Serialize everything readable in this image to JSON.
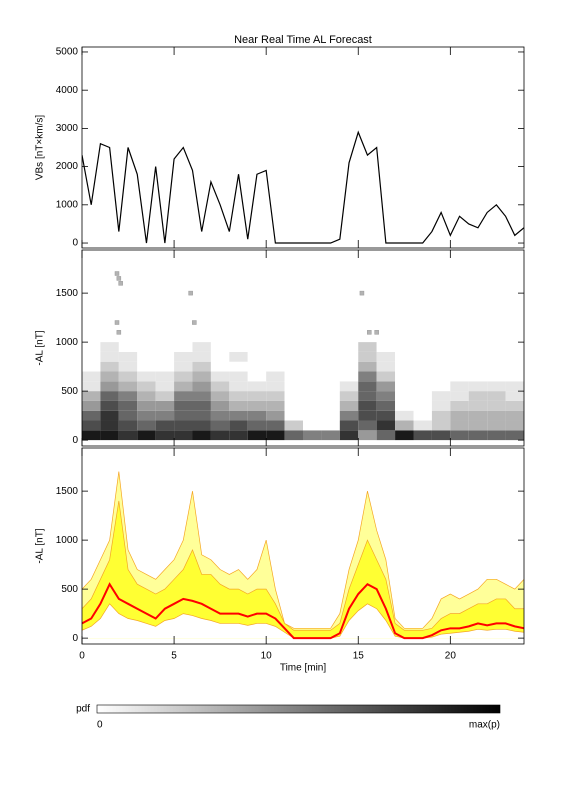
{
  "chart_data": [
    {
      "type": "line",
      "title": "Near Real Time AL Forecast",
      "ylabel": "VBs [nT×km/s]",
      "color": "#000000",
      "xlim": [
        0,
        24
      ],
      "xticks": [
        0,
        5,
        10,
        15,
        20
      ],
      "ylim": [
        -130,
        5130
      ],
      "yticks": [
        0,
        1000,
        2000,
        3000,
        4000,
        5000
      ],
      "x": [
        0,
        0.5,
        1,
        1.5,
        2,
        2.5,
        3,
        3.5,
        4,
        4.5,
        5,
        5.5,
        6,
        6.5,
        7,
        7.5,
        8,
        8.5,
        9,
        9.5,
        10,
        10.5,
        11,
        11.5,
        12,
        12.5,
        13,
        13.5,
        14,
        14.5,
        15,
        15.5,
        16,
        16.5,
        17,
        17.5,
        18,
        18.5,
        19,
        19.5,
        20,
        20.5,
        21,
        21.5,
        22,
        22.5,
        23,
        23.5,
        24
      ],
      "values": [
        2300,
        1000,
        2600,
        2500,
        300,
        2500,
        1800,
        0,
        2000,
        0,
        2200,
        2500,
        1900,
        300,
        1600,
        1000,
        300,
        1800,
        100,
        1800,
        1900,
        0,
        0,
        0,
        0,
        0,
        0,
        0,
        100,
        2100,
        2900,
        2300,
        2500,
        0,
        0,
        0,
        0,
        0,
        300,
        800,
        200,
        700,
        500,
        400,
        800,
        1000,
        700,
        200,
        400
      ]
    },
    {
      "type": "heatmap",
      "ylabel": "-AL [nT]",
      "xlim": [
        0,
        24
      ],
      "xticks": [
        0,
        5,
        10,
        15,
        20
      ],
      "ylim": [
        -60,
        1940
      ],
      "yticks": [
        0,
        500,
        1000,
        1500
      ],
      "xbins": [
        0,
        1,
        2,
        3,
        4,
        5,
        6,
        7,
        8,
        9,
        10,
        11,
        12,
        13,
        14,
        15,
        16,
        17,
        18,
        19,
        20,
        21,
        22,
        23,
        24
      ],
      "ybins": [
        0,
        100,
        200,
        300,
        400,
        500,
        600,
        700,
        800,
        900,
        1000
      ],
      "z": [
        [
          0.9,
          0.9,
          0.8,
          0.9,
          0.8,
          0.8,
          0.9,
          0.8,
          0.8,
          0.9,
          0.9,
          0.6,
          0.5,
          0.5,
          0.8,
          0.4,
          0.6,
          0.9,
          0.7,
          0.7,
          0.6,
          0.6,
          0.6,
          0.6
        ],
        [
          0.7,
          0.8,
          0.7,
          0.6,
          0.7,
          0.7,
          0.7,
          0.6,
          0.7,
          0.6,
          0.6,
          0.2,
          0,
          0,
          0.7,
          0.6,
          0.8,
          0.3,
          0.1,
          0.2,
          0.3,
          0.3,
          0.3,
          0.3
        ],
        [
          0.6,
          0.8,
          0.6,
          0.5,
          0.5,
          0.6,
          0.6,
          0.5,
          0.5,
          0.5,
          0.4,
          0,
          0,
          0,
          0.5,
          0.7,
          0.7,
          0.1,
          0,
          0.2,
          0.3,
          0.3,
          0.3,
          0.3
        ],
        [
          0.4,
          0.7,
          0.6,
          0.4,
          0.4,
          0.6,
          0.6,
          0.4,
          0.3,
          0.3,
          0.3,
          0,
          0,
          0,
          0.3,
          0.7,
          0.6,
          0,
          0,
          0.1,
          0.2,
          0.2,
          0.2,
          0.2
        ],
        [
          0.3,
          0.6,
          0.5,
          0.3,
          0.2,
          0.5,
          0.5,
          0.3,
          0.2,
          0.2,
          0.2,
          0,
          0,
          0,
          0.2,
          0.6,
          0.5,
          0,
          0,
          0.1,
          0.1,
          0.2,
          0.2,
          0.1
        ],
        [
          0.1,
          0.4,
          0.3,
          0.2,
          0.1,
          0.3,
          0.4,
          0.2,
          0.1,
          0.1,
          0.1,
          0,
          0,
          0,
          0.1,
          0.6,
          0.4,
          0,
          0,
          0,
          0.1,
          0.1,
          0.1,
          0.1
        ],
        [
          0.1,
          0.3,
          0.2,
          0.1,
          0.1,
          0.2,
          0.3,
          0.1,
          0.1,
          0,
          0.1,
          0,
          0,
          0,
          0,
          0.5,
          0.2,
          0,
          0,
          0,
          0,
          0,
          0,
          0
        ],
        [
          0,
          0.2,
          0.1,
          0,
          0,
          0.1,
          0.2,
          0,
          0,
          0,
          0,
          0,
          0,
          0,
          0,
          0.3,
          0.1,
          0,
          0,
          0,
          0,
          0,
          0,
          0
        ],
        [
          0,
          0.1,
          0.1,
          0,
          0,
          0.1,
          0.1,
          0,
          0.1,
          0,
          0,
          0,
          0,
          0,
          0,
          0.2,
          0.1,
          0,
          0,
          0,
          0,
          0,
          0,
          0
        ],
        [
          0,
          0.1,
          0,
          0,
          0,
          0,
          0.1,
          0,
          0,
          0,
          0,
          0,
          0,
          0,
          0,
          0.2,
          0,
          0,
          0,
          0,
          0,
          0,
          0,
          0
        ]
      ],
      "outliers": {
        "x": [
          1.9,
          2,
          2.1,
          1.9,
          5.9,
          6.1,
          15.2,
          15.6,
          16,
          2
        ],
        "y": [
          1700,
          1650,
          1600,
          1200,
          1500,
          1200,
          1500,
          1100,
          1100,
          1100
        ],
        "value": 0.3
      },
      "colorbar": {
        "label": "pdf",
        "min_label": "0",
        "max_label": "max(p)"
      }
    },
    {
      "type": "band",
      "ylabel": "-AL [nT]",
      "xlabel": "Time [min]",
      "xlim": [
        0,
        24
      ],
      "xticks": [
        0,
        5,
        10,
        15,
        20
      ],
      "ylim": [
        -60,
        1940
      ],
      "yticks": [
        0,
        500,
        1000,
        1500
      ],
      "x": [
        0,
        0.5,
        1,
        1.5,
        2,
        2.5,
        3,
        3.5,
        4,
        4.5,
        5,
        5.5,
        6,
        6.5,
        7,
        7.5,
        8,
        8.5,
        9,
        9.5,
        10,
        10.5,
        11,
        11.5,
        12,
        12.5,
        13,
        13.5,
        14,
        14.5,
        15,
        15.5,
        16,
        16.5,
        17,
        17.5,
        18,
        18.5,
        19,
        19.5,
        20,
        20.5,
        21,
        21.5,
        22,
        22.5,
        23,
        23.5,
        24
      ],
      "series": [
        {
          "color": "#ffff99",
          "values": [
            500,
            600,
            800,
            1000,
            1700,
            900,
            700,
            650,
            600,
            700,
            800,
            1000,
            1500,
            850,
            800,
            700,
            650,
            700,
            600,
            700,
            1000,
            500,
            150,
            100,
            100,
            100,
            100,
            100,
            250,
            700,
            1000,
            1500,
            1100,
            800,
            200,
            100,
            100,
            100,
            200,
            400,
            450,
            400,
            450,
            500,
            600,
            600,
            550,
            500,
            600
          ]
        },
        {
          "color": "#ffff33",
          "values": [
            300,
            400,
            600,
            800,
            1400,
            700,
            550,
            500,
            450,
            500,
            600,
            700,
            900,
            650,
            650,
            550,
            500,
            500,
            450,
            500,
            500,
            350,
            150,
            80,
            80,
            80,
            80,
            80,
            150,
            500,
            750,
            1000,
            800,
            600,
            150,
            80,
            80,
            80,
            100,
            200,
            250,
            250,
            300,
            350,
            350,
            400,
            400,
            300,
            300
          ]
        },
        {
          "color": "#ffffff",
          "values": [
            80,
            120,
            200,
            350,
            250,
            200,
            180,
            150,
            120,
            180,
            200,
            250,
            230,
            200,
            180,
            150,
            150,
            150,
            130,
            150,
            150,
            120,
            60,
            0,
            0,
            0,
            0,
            0,
            20,
            180,
            280,
            350,
            300,
            180,
            20,
            0,
            0,
            0,
            10,
            40,
            50,
            60,
            70,
            90,
            80,
            90,
            90,
            70,
            60
          ]
        },
        {
          "color": "#ff0000",
          "values": [
            150,
            200,
            350,
            550,
            400,
            350,
            300,
            250,
            200,
            300,
            350,
            400,
            380,
            350,
            300,
            250,
            250,
            250,
            220,
            250,
            250,
            200,
            100,
            0,
            0,
            0,
            0,
            0,
            50,
            300,
            450,
            550,
            500,
            300,
            50,
            0,
            0,
            0,
            30,
            80,
            100,
            100,
            120,
            150,
            130,
            150,
            150,
            120,
            100
          ]
        }
      ]
    }
  ]
}
